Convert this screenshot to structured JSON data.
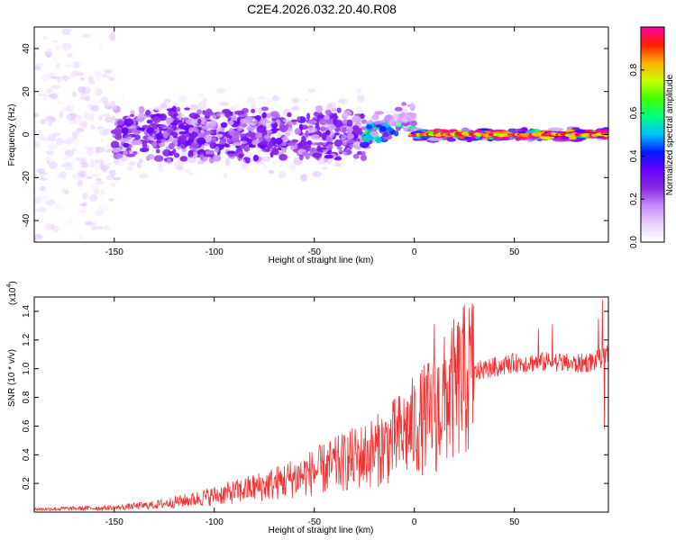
{
  "title": "C2E4.2026.032.20.40.R08",
  "colors": {
    "snr_line": "#f03030",
    "axis": "#000000",
    "colormap": [
      "#ffffff",
      "#e9d3ff",
      "#c98cff",
      "#8a2be2",
      "#6a00ff",
      "#0018ff",
      "#00c0ff",
      "#00ff80",
      "#40ff00",
      "#c8ff00",
      "#ffb000",
      "#ff2000",
      "#ff00aa"
    ]
  },
  "chart_data": [
    {
      "type": "heatmap",
      "name": "spectrogram",
      "title": "C2E4.2026.032.20.40.R08",
      "xlabel": "Height of straight line (km)",
      "ylabel": "Frequency (Hz)",
      "xlim": [
        -190,
        97
      ],
      "ylim": [
        -50,
        50
      ],
      "xticks": [
        -150,
        -100,
        -50,
        0,
        50
      ],
      "yticks": [
        -40,
        -20,
        0,
        20,
        40
      ],
      "colorbar": {
        "label": "Normalized spectral amplitude",
        "range": [
          0,
          1
        ],
        "ticks": [
          0.0,
          0.2,
          0.4,
          0.6,
          0.8
        ]
      },
      "regions": [
        {
          "x": [
            -190,
            -150
          ],
          "freq_spread_hz": 50,
          "amplitude": 0.08
        },
        {
          "x": [
            -150,
            -25
          ],
          "freq_spread_hz": 10,
          "amplitude": 0.25
        },
        {
          "x": [
            -25,
            0
          ],
          "freq_spread_hz": 4,
          "amplitude": 0.45
        },
        {
          "x": [
            0,
            97
          ],
          "freq_spread_hz": 1.5,
          "amplitude": 0.85
        }
      ]
    },
    {
      "type": "line",
      "name": "snr",
      "xlabel": "Height of straight line (km)",
      "ylabel": "SNR (10 * v/v)",
      "y_scale_label": "(x10",
      "y_scale_exp": "4",
      "xlim": [
        -190,
        97
      ],
      "ylim": [
        0,
        1.5
      ],
      "xticks": [
        -150,
        -100,
        -50,
        0,
        50
      ],
      "yticks": [
        0.2,
        0.4,
        0.6,
        0.8,
        1.0,
        1.2,
        1.4
      ],
      "series": [
        {
          "name": "SNR",
          "trend_x": [
            -190,
            -150,
            -130,
            -110,
            -90,
            -70,
            -50,
            -35,
            -20,
            -10,
            0,
            10,
            20,
            30,
            50,
            70,
            80,
            90,
            97
          ],
          "trend_y": [
            0.02,
            0.03,
            0.05,
            0.09,
            0.14,
            0.2,
            0.28,
            0.35,
            0.42,
            0.5,
            0.6,
            0.7,
            0.85,
            0.98,
            1.04,
            1.05,
            1.03,
            1.05,
            1.1
          ],
          "noise_amp": 0.6,
          "spikes": [
            {
              "x": 10,
              "y": 1.31
            },
            {
              "x": 11,
              "y": 0.28
            },
            {
              "x": 62,
              "y": 1.28
            },
            {
              "x": 69,
              "y": 1.31
            },
            {
              "x": 92,
              "y": 1.35
            },
            {
              "x": 94,
              "y": 1.48
            },
            {
              "x": 95,
              "y": 0.58
            }
          ]
        }
      ]
    }
  ]
}
